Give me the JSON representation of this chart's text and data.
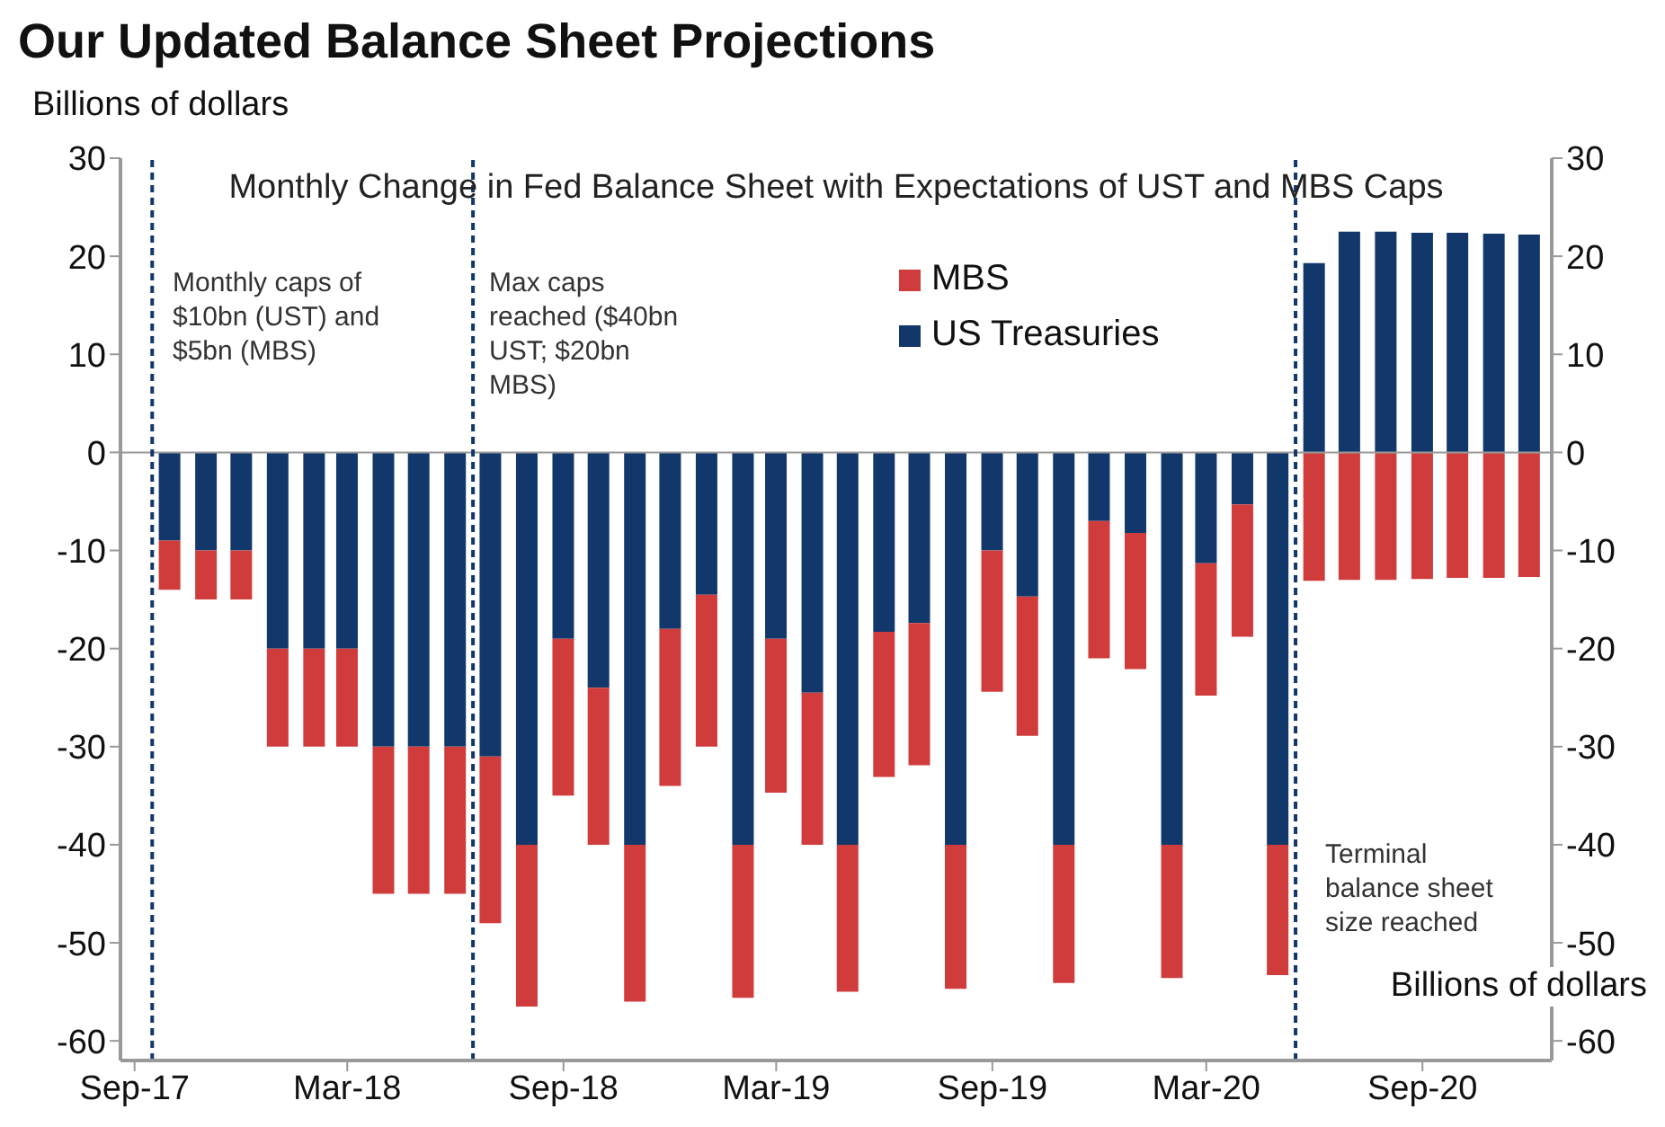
{
  "chart_data": {
    "type": "bar",
    "stacked": true,
    "title": "Our Updated Balance Sheet Projections",
    "subtitle": "Monthly Change in Fed Balance Sheet with Expectations of UST and MBS Caps",
    "ylabel": "Billions of dollars",
    "y2label": "Billions of dollars",
    "x": [
      "2017-10",
      "2017-11",
      "2017-12",
      "2018-01",
      "2018-02",
      "2018-03",
      "2018-04",
      "2018-05",
      "2018-06",
      "2018-07",
      "2018-08",
      "2018-09",
      "2018-10",
      "2018-11",
      "2018-12",
      "2019-01",
      "2019-02",
      "2019-03",
      "2019-04",
      "2019-05",
      "2019-06",
      "2019-07",
      "2019-08",
      "2019-09",
      "2019-10",
      "2019-11",
      "2019-12",
      "2020-01",
      "2020-02",
      "2020-03",
      "2020-04",
      "2020-05",
      "2020-06",
      "2020-07",
      "2020-08",
      "2020-09",
      "2020-10",
      "2020-11",
      "2020-12"
    ],
    "series": [
      {
        "name": "US Treasuries",
        "color": "#12386b",
        "values": [
          -9,
          -10,
          -10,
          -20,
          -20,
          -20,
          -30,
          -30,
          -30,
          -31,
          -40,
          -19,
          -24,
          -40,
          -18,
          -14.5,
          -40,
          -19,
          -24.5,
          -40,
          -18.3,
          -17.4,
          -40,
          -10,
          -14.7,
          -40,
          -7,
          -8.2,
          -40,
          -11.3,
          -5.3,
          -40,
          19.3,
          22.5,
          22.5,
          22.4,
          22.4,
          22.3,
          22.2
        ]
      },
      {
        "name": "MBS",
        "color": "#d03c3c",
        "values": [
          -5,
          -5,
          -5,
          -10,
          -10,
          -10,
          -15,
          -15,
          -15,
          -17,
          -16.5,
          -16,
          -16,
          -16,
          -16,
          -15.5,
          -15.6,
          -15.7,
          -15.5,
          -15,
          -14.8,
          -14.5,
          -14.7,
          -14.4,
          -14.2,
          -14.1,
          -14,
          -13.9,
          -13.6,
          -13.5,
          -13.5,
          -13.3,
          -13.1,
          -13,
          -13,
          -12.9,
          -12.8,
          -12.8,
          -12.7
        ]
      }
    ],
    "xlim": [
      "2017-08-20",
      "2020-12-20"
    ],
    "xticks": [
      {
        "value": "2017-09",
        "label": "Sep-17"
      },
      {
        "value": "2018-03",
        "label": "Mar-18"
      },
      {
        "value": "2018-09",
        "label": "Sep-18"
      },
      {
        "value": "2019-03",
        "label": "Mar-19"
      },
      {
        "value": "2019-09",
        "label": "Sep-19"
      },
      {
        "value": "2020-03",
        "label": "Mar-20"
      },
      {
        "value": "2020-09",
        "label": "Sep-20"
      }
    ],
    "ylim": [
      -62,
      30
    ],
    "yticks": [
      -60,
      -50,
      -40,
      -30,
      -20,
      -10,
      0,
      10,
      20,
      30
    ],
    "y2lim": [
      -62,
      30
    ],
    "y2ticks": [
      -60,
      -50,
      -40,
      -30,
      -20,
      -10,
      0,
      10,
      20,
      30
    ],
    "ref_lines": [
      {
        "axis": "y",
        "value": 0,
        "color": "#999999",
        "line_style": "solid"
      },
      {
        "axis": "x",
        "value": "2017-09-16",
        "color": "#12386b",
        "line_style": "dashed"
      },
      {
        "axis": "x",
        "value": "2018-06-16",
        "color": "#12386b",
        "line_style": "dashed"
      },
      {
        "axis": "x",
        "value": "2020-05-16",
        "color": "#12386b",
        "line_style": "dashed"
      }
    ],
    "annotations": [
      "Monthly caps of $10bn (UST) and $5bn (MBS)",
      "Max caps reached ($40bn UST; $20bn MBS)",
      "Terminal balance sheet size reached"
    ],
    "legend": "top"
  }
}
